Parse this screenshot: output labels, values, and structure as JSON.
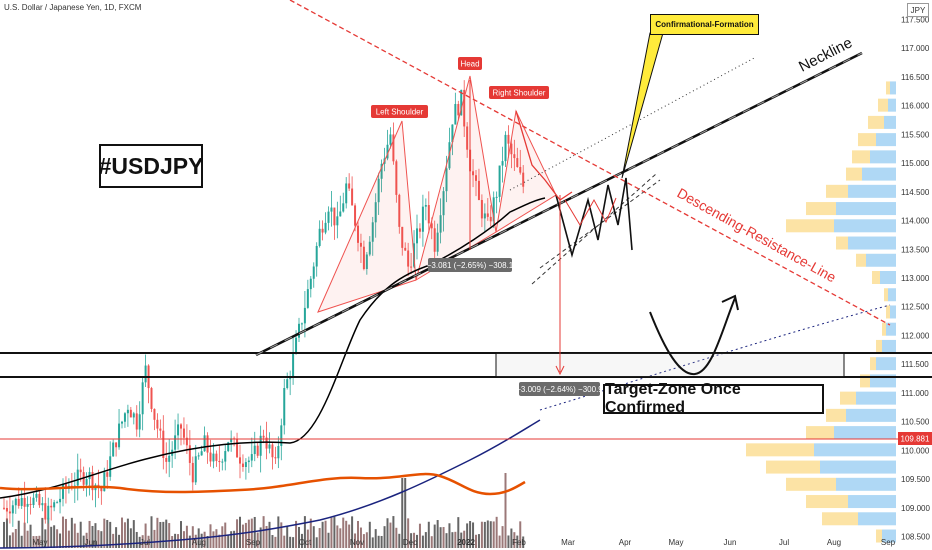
{
  "header": {
    "symbol_title": "U.S. Dollar / Japanese Yen, 1D, FXCM",
    "currency": "JPY"
  },
  "annotations": {
    "tag": "#USDJPY",
    "left_shoulder": "Left Shoulder",
    "head": "Head",
    "right_shoulder": "Right Shoulder",
    "neckline": "Neckline",
    "descending_line": "Descending-Resistance-Line",
    "confirmational": "Confirmational-Formation",
    "target_zone": "Target-Zone Once Confirmed",
    "measure_1": "−3.081 (−2.65%) −308.1",
    "measure_2": "−3.009 (−2.64%) −300.9",
    "last_price": "109.881"
  },
  "colors": {
    "up": "#26a69a",
    "down": "#ef5350",
    "red": "#e53935",
    "ma": "#000000",
    "ma_long": "#1a237e",
    "vol_ma": "#e65100",
    "vp_yellow": "#f9c84b",
    "vp_blue": "#4da8e8"
  },
  "chart_data": {
    "type": "candlestick",
    "x_tick_labels": [
      "May",
      "Jun",
      "Jul",
      "Aug",
      "Sep",
      "Oct",
      "Nov",
      "Dec",
      "2022",
      "Feb",
      "Mar",
      "Apr",
      "May",
      "Jun",
      "Jul",
      "Aug",
      "Sep"
    ],
    "y_tick_labels": [
      "108.500",
      "109.000",
      "109.500",
      "110.000",
      "110.500",
      "111.000",
      "111.500",
      "112.000",
      "112.500",
      "113.000",
      "113.500",
      "114.000",
      "114.500",
      "115.000",
      "115.500",
      "116.000",
      "116.500",
      "117.000",
      "117.500"
    ],
    "ylim": [
      108.3,
      117.7
    ],
    "price_path": [
      [
        0,
        109.0
      ],
      [
        8,
        109.2
      ],
      [
        15,
        108.9
      ],
      [
        22,
        109.4
      ],
      [
        28,
        109.6
      ],
      [
        33,
        109.3
      ],
      [
        38,
        110.2
      ],
      [
        42,
        110.8
      ],
      [
        45,
        110.5
      ],
      [
        48,
        111.4
      ],
      [
        51,
        110.6
      ],
      [
        55,
        109.8
      ],
      [
        60,
        110.4
      ],
      [
        64,
        109.6
      ],
      [
        68,
        110.1
      ],
      [
        72,
        109.7
      ],
      [
        76,
        110.2
      ],
      [
        80,
        109.9
      ],
      [
        84,
        109.8
      ],
      [
        88,
        110.3
      ],
      [
        92,
        109.7
      ],
      [
        95,
        111.0
      ],
      [
        98,
        111.6
      ],
      [
        101,
        112.3
      ],
      [
        104,
        113.0
      ],
      [
        107,
        113.8
      ],
      [
        110,
        114.3
      ],
      [
        113,
        113.9
      ],
      [
        116,
        114.6
      ],
      [
        119,
        114.0
      ],
      [
        122,
        113.3
      ],
      [
        125,
        114.0
      ],
      [
        128,
        115.0
      ],
      [
        131,
        115.5
      ],
      [
        134,
        113.8
      ],
      [
        137,
        113.2
      ],
      [
        140,
        113.7
      ],
      [
        143,
        114.3
      ],
      [
        146,
        113.6
      ],
      [
        149,
        114.6
      ],
      [
        152,
        115.8
      ],
      [
        155,
        116.1
      ],
      [
        158,
        115.0
      ],
      [
        161,
        114.3
      ],
      [
        164,
        113.9
      ],
      [
        167,
        114.5
      ],
      [
        170,
        115.4
      ],
      [
        173,
        115.0
      ],
      [
        176,
        114.6
      ]
    ],
    "volume_note": "volume bars along bottom with moving average",
    "measurements": [
      {
        "label": "−3.081 (−2.65%) −308.1",
        "change": -3.081,
        "percent": -2.65,
        "ticks": -308.1
      },
      {
        "label": "−3.009 (−2.64%) −300.9",
        "change": -3.009,
        "percent": -2.64,
        "ticks": -300.9
      }
    ],
    "horizontal_levels": {
      "zone_top": 111.4,
      "zone_bottom": 110.97,
      "last_price": 109.881
    }
  }
}
